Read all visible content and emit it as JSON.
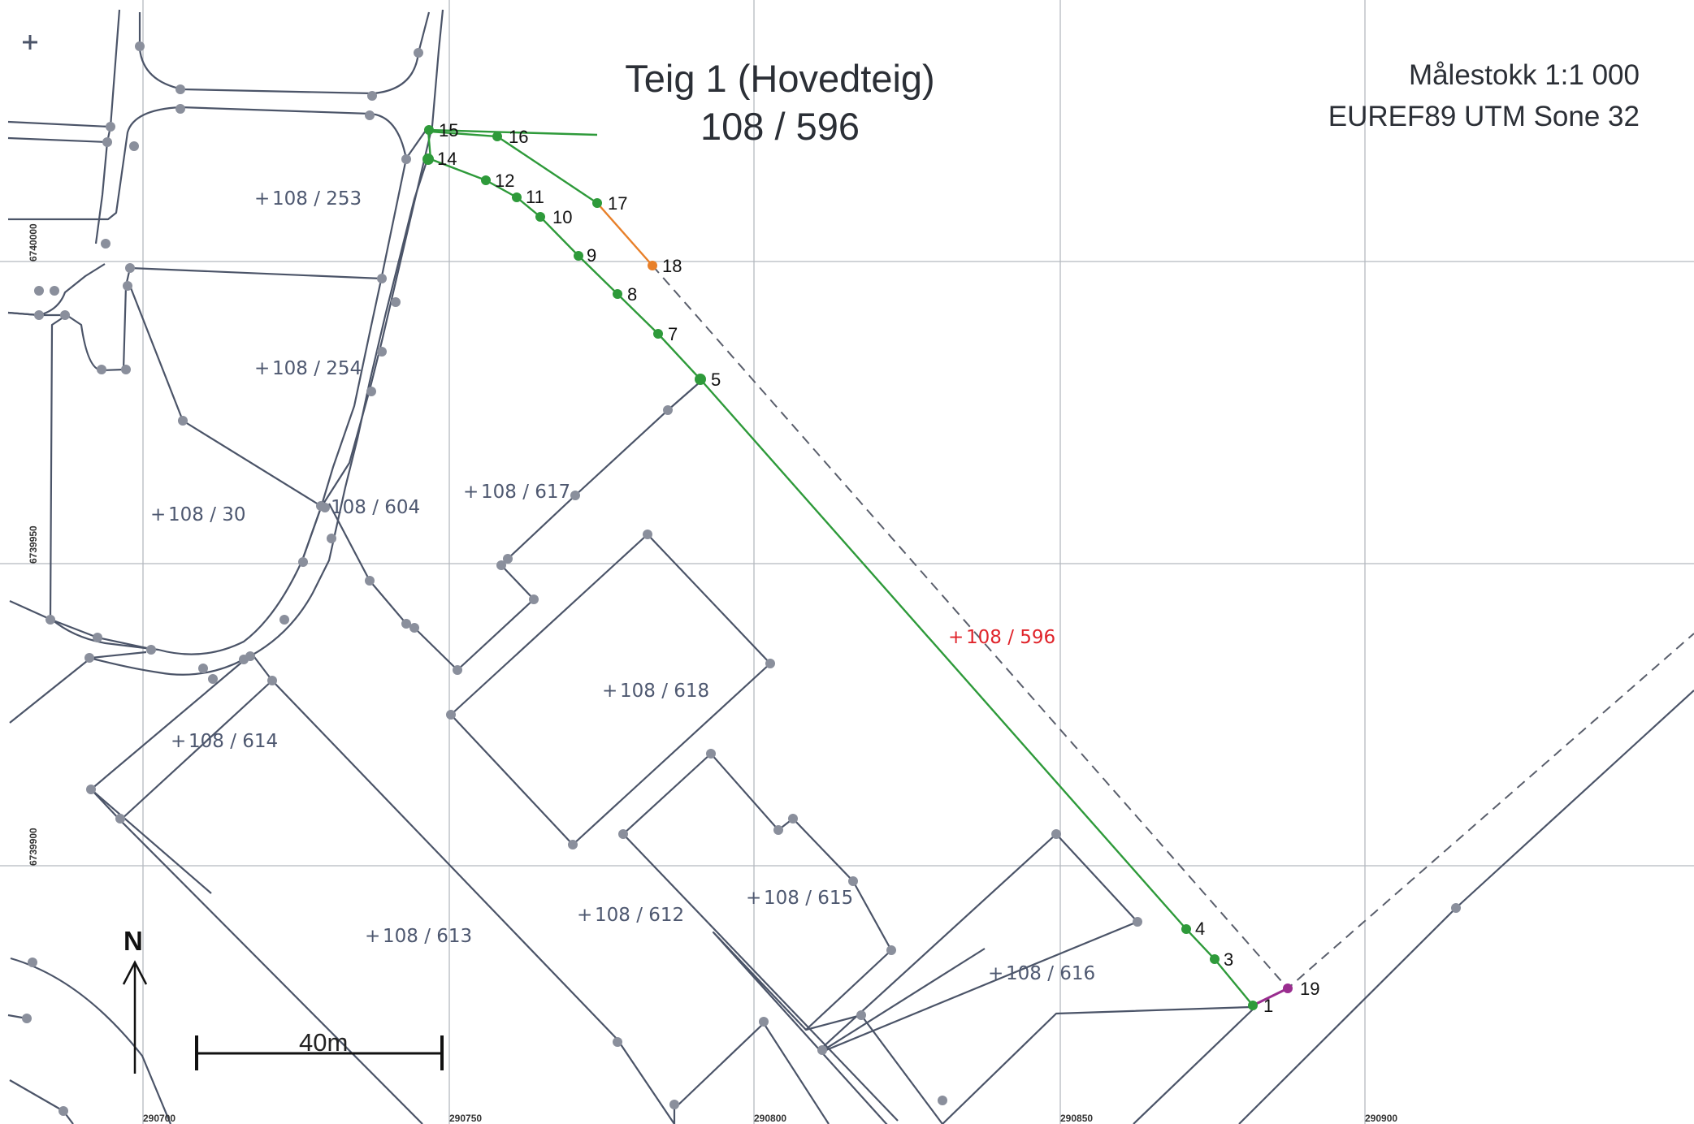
{
  "title": {
    "line1": "Teig 1 (Hovedteig)",
    "line2": "108 / 596"
  },
  "info": {
    "scale": "Målestokk 1:1 000",
    "datum": "EUREF89 UTM Sone 32"
  },
  "grid": {
    "eastings": [
      "290700",
      "290750",
      "290800",
      "290850",
      "290900"
    ],
    "northings": [
      "6740000",
      "6739950",
      "6739900"
    ]
  },
  "parcels": [
    {
      "id": "108 / 253",
      "main": false
    },
    {
      "id": "108 / 254",
      "main": false
    },
    {
      "id": "108 / 604",
      "main": false
    },
    {
      "id": "108 / 30",
      "main": false
    },
    {
      "id": "108 / 617",
      "main": false
    },
    {
      "id": "108 / 618",
      "main": false
    },
    {
      "id": "108 / 614",
      "main": false
    },
    {
      "id": "108 / 613",
      "main": false
    },
    {
      "id": "108 / 612",
      "main": false
    },
    {
      "id": "108 / 615",
      "main": false
    },
    {
      "id": "108 / 616",
      "main": false
    },
    {
      "id": "108 / 596",
      "main": true
    }
  ],
  "boundary_points": [
    "1",
    "3",
    "4",
    "5",
    "7",
    "8",
    "9",
    "10",
    "11",
    "12",
    "14",
    "15",
    "16",
    "17",
    "18",
    "19"
  ],
  "scale_bar": {
    "label": "40m",
    "meters": 40
  },
  "north_label": "N",
  "colors": {
    "boundary_main": "#2e9a3a",
    "boundary_disputed": "#e8802a",
    "boundary_short": "#9a2d8f",
    "parcel_lines": "#4b5468",
    "grid": "#b5b9bf",
    "main_label": "#e0242b"
  }
}
